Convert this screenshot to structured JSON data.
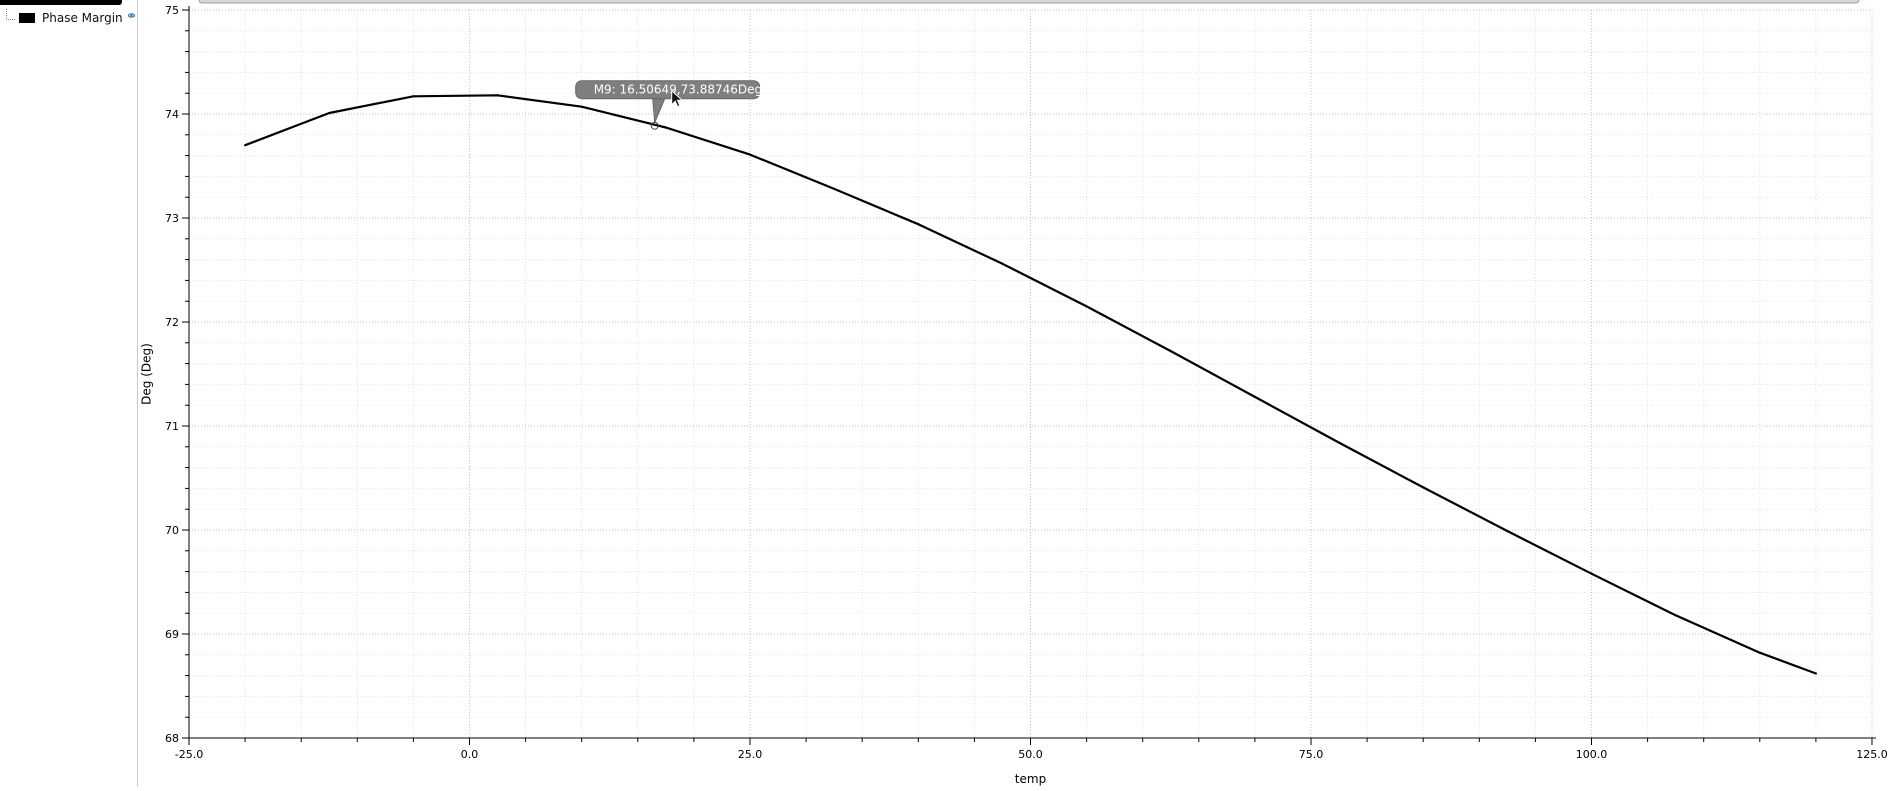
{
  "legend": {
    "items": [
      {
        "label": "Phase Margin",
        "color": "#000000"
      }
    ]
  },
  "marker": {
    "label": "M9: 16.50649,73.88746Deg",
    "x": 16.50649,
    "y": 73.88746
  },
  "chart_data": {
    "type": "line",
    "xlabel": "temp",
    "ylabel": "Deg (Deg)",
    "xlim": [
      -25.0,
      125.0
    ],
    "ylim": [
      68,
      75
    ],
    "xticks": [
      "-25.0",
      "0.0",
      "25.0",
      "50.0",
      "75.0",
      "100.0",
      "125.0"
    ],
    "yticks": [
      "68",
      "69",
      "70",
      "71",
      "72",
      "73",
      "74",
      "75"
    ],
    "grid": true,
    "series": [
      {
        "name": "Phase Margin",
        "color": "#000000",
        "x": [
          -20,
          -12.5,
          -5,
          2.5,
          10,
          17.5,
          25,
          32.5,
          40,
          47.5,
          55,
          62.5,
          70,
          77.5,
          85,
          92.5,
          100,
          107.5,
          115,
          120
        ],
        "y": [
          73.7,
          74.01,
          74.17,
          74.18,
          74.07,
          73.87,
          73.61,
          73.28,
          72.94,
          72.56,
          72.15,
          71.72,
          71.28,
          70.84,
          70.41,
          69.99,
          69.58,
          69.18,
          68.82,
          68.62
        ]
      }
    ]
  }
}
